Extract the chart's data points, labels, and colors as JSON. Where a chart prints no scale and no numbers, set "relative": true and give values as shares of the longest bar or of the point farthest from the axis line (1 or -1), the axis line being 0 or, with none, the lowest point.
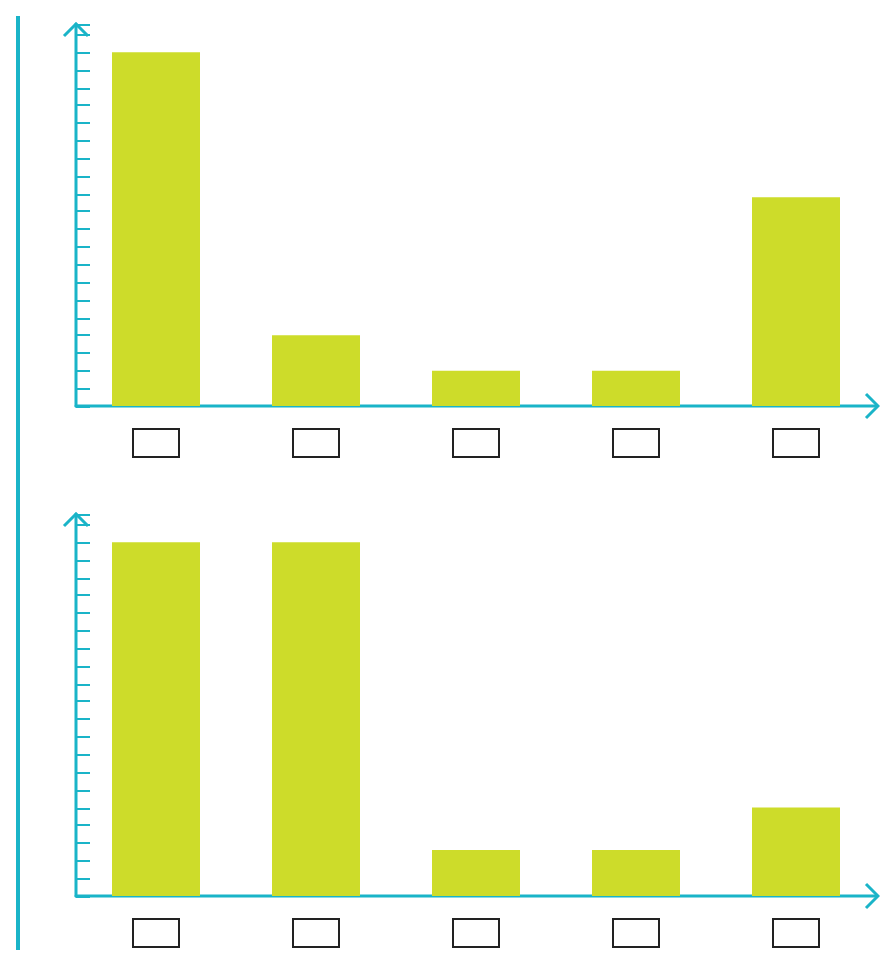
{
  "chart_data": [
    {
      "type": "bar",
      "relative": true,
      "categories": [
        null,
        null,
        null,
        null,
        null
      ],
      "values": [
        1,
        0.2,
        0.1,
        0.1,
        0.59
      ],
      "color": "#cddc2a"
    },
    {
      "type": "bar",
      "relative": true,
      "categories": [
        null,
        null,
        null,
        null,
        null
      ],
      "values": [
        1,
        1,
        0.13,
        0.13,
        0.25
      ],
      "color": "#cddc2a"
    }
  ]
}
